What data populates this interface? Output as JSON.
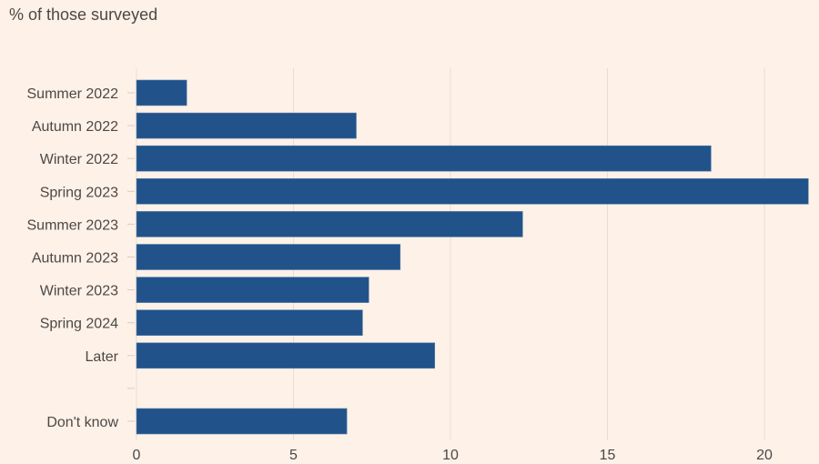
{
  "chart_data": {
    "type": "bar",
    "orientation": "horizontal",
    "title": "",
    "ylabel": "% of those surveyed",
    "xlabel": "",
    "categories": [
      "Summer 2022",
      "Autumn 2022",
      "Winter 2022",
      "Spring 2023",
      "Summer 2023",
      "Autumn 2023",
      "Winter 2023",
      "Spring 2024",
      "Later",
      "",
      "Don't know"
    ],
    "values": [
      1.6,
      7.0,
      18.3,
      21.4,
      12.3,
      8.4,
      7.4,
      7.2,
      9.5,
      null,
      6.7
    ],
    "xlim": [
      0,
      21.5
    ],
    "xticks": [
      0,
      5,
      10,
      15,
      20
    ],
    "grid": true,
    "bar_color": "#21528a",
    "grid_color": "#e9ddd3"
  }
}
